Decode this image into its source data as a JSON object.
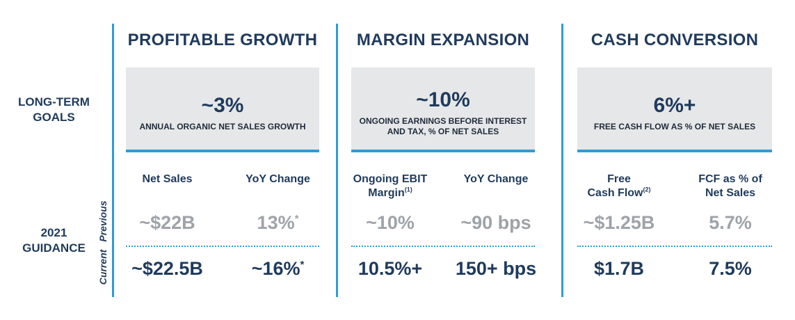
{
  "row_labels": {
    "goals": [
      "LONG-TERM",
      "GOALS"
    ],
    "guidance": [
      "2021",
      "GUIDANCE"
    ],
    "previous": "Previous",
    "current": "Current"
  },
  "columns": [
    {
      "title": "PROFITABLE GROWTH",
      "goal_value": "~3%",
      "goal_desc": "ANNUAL ORGANIC NET SALES GROWTH",
      "headers": [
        {
          "line1": "Net Sales",
          "line2": "",
          "sup": ""
        },
        {
          "line1": "YoY Change",
          "line2": "",
          "sup": ""
        }
      ],
      "previous": [
        {
          "value": "~$22B",
          "mark": ""
        },
        {
          "value": "13%",
          "mark": "*"
        }
      ],
      "current": [
        {
          "value": "~$22.5B",
          "mark": ""
        },
        {
          "value": "~16%",
          "mark": "*"
        }
      ]
    },
    {
      "title": "MARGIN EXPANSION",
      "goal_value": "~10%",
      "goal_desc": "ONGOING EARNINGS BEFORE INTEREST AND TAX, % OF NET SALES",
      "headers": [
        {
          "line1": "Ongoing EBIT",
          "line2": "Margin",
          "sup": "(1)"
        },
        {
          "line1": "YoY Change",
          "line2": "",
          "sup": ""
        }
      ],
      "previous": [
        {
          "value": "~10%",
          "mark": ""
        },
        {
          "value": "~90 bps",
          "mark": ""
        }
      ],
      "current": [
        {
          "value": "10.5%+",
          "mark": ""
        },
        {
          "value": "150+ bps",
          "mark": ""
        }
      ]
    },
    {
      "title": "CASH CONVERSION",
      "goal_value": "6%+",
      "goal_desc": "FREE CASH FLOW AS % OF NET SALES",
      "headers": [
        {
          "line1": "Free",
          "line2": "Cash Flow",
          "sup": "(2)"
        },
        {
          "line1": "FCF as % of",
          "line2": "Net Sales",
          "sup": ""
        }
      ],
      "previous": [
        {
          "value": "~$1.25B",
          "mark": ""
        },
        {
          "value": "5.7%",
          "mark": ""
        }
      ],
      "current": [
        {
          "value": "$1.7B",
          "mark": ""
        },
        {
          "value": "7.5%",
          "mark": ""
        }
      ]
    }
  ],
  "colors": {
    "navy": "#1f3a5c",
    "accent_blue": "#2e9bd6",
    "box_gray": "#e6e7e8",
    "muted_gray": "#9ea3a8"
  }
}
